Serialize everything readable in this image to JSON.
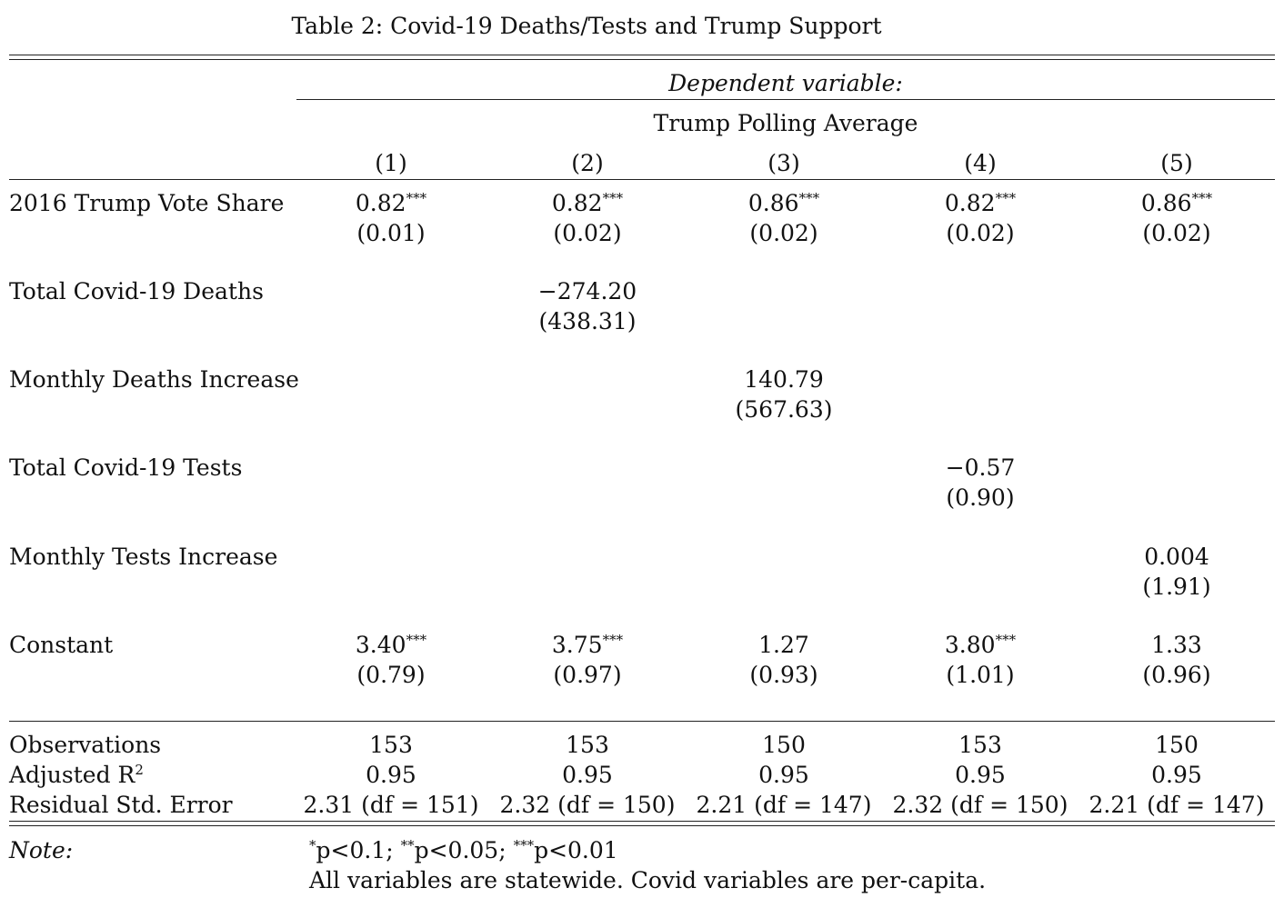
{
  "caption": "Table 2: Covid-19 Deaths/Tests and Trump Support",
  "header": {
    "dependent_label": "Dependent variable:",
    "dependent_name": "Trump Polling Average",
    "columns": [
      "(1)",
      "(2)",
      "(3)",
      "(4)",
      "(5)"
    ]
  },
  "rows": [
    {
      "label": "2016 Trump Vote Share",
      "coef": [
        "0.82",
        "0.82",
        "0.86",
        "0.82",
        "0.86"
      ],
      "stars": [
        "***",
        "***",
        "***",
        "***",
        "***"
      ],
      "se": [
        "(0.01)",
        "(0.02)",
        "(0.02)",
        "(0.02)",
        "(0.02)"
      ]
    },
    {
      "label": "Total Covid-19 Deaths",
      "coef": [
        "",
        "−274.20",
        "",
        "",
        ""
      ],
      "stars": [
        "",
        "",
        "",
        "",
        ""
      ],
      "se": [
        "",
        "(438.31)",
        "",
        "",
        ""
      ]
    },
    {
      "label": "Monthly Deaths Increase",
      "coef": [
        "",
        "",
        "140.79",
        "",
        ""
      ],
      "stars": [
        "",
        "",
        "",
        "",
        ""
      ],
      "se": [
        "",
        "",
        "(567.63)",
        "",
        ""
      ]
    },
    {
      "label": "Total Covid-19 Tests",
      "coef": [
        "",
        "",
        "",
        "−0.57",
        ""
      ],
      "stars": [
        "",
        "",
        "",
        "",
        ""
      ],
      "se": [
        "",
        "",
        "",
        "(0.90)",
        ""
      ]
    },
    {
      "label": "Monthly Tests Increase",
      "coef": [
        "",
        "",
        "",
        "",
        "0.004"
      ],
      "stars": [
        "",
        "",
        "",
        "",
        ""
      ],
      "se": [
        "",
        "",
        "",
        "",
        "(1.91)"
      ]
    },
    {
      "label": "Constant",
      "coef": [
        "3.40",
        "3.75",
        "1.27",
        "3.80",
        "1.33"
      ],
      "stars": [
        "***",
        "***",
        "",
        "***",
        ""
      ],
      "se": [
        "(0.79)",
        "(0.97)",
        "(0.93)",
        "(1.01)",
        "(0.96)"
      ]
    }
  ],
  "stats": [
    {
      "label": "Observations",
      "label_sup": "",
      "values": [
        "153",
        "153",
        "150",
        "153",
        "150"
      ]
    },
    {
      "label": "Adjusted R",
      "label_sup": "2",
      "values": [
        "0.95",
        "0.95",
        "0.95",
        "0.95",
        "0.95"
      ]
    },
    {
      "label": "Residual Std. Error",
      "label_sup": "",
      "values": [
        "2.31 (df = 151)",
        "2.32 (df = 150)",
        "2.21 (df = 147)",
        "2.32 (df = 150)",
        "2.21 (df = 147)"
      ]
    }
  ],
  "note": {
    "label": "Note:",
    "sig_parts": [
      {
        "star": "*",
        "text": "p<0.1; "
      },
      {
        "star": "**",
        "text": "p<0.05; "
      },
      {
        "star": "***",
        "text": "p<0.01"
      }
    ],
    "text": "All variables are statewide. Covid variables are per-capita."
  }
}
